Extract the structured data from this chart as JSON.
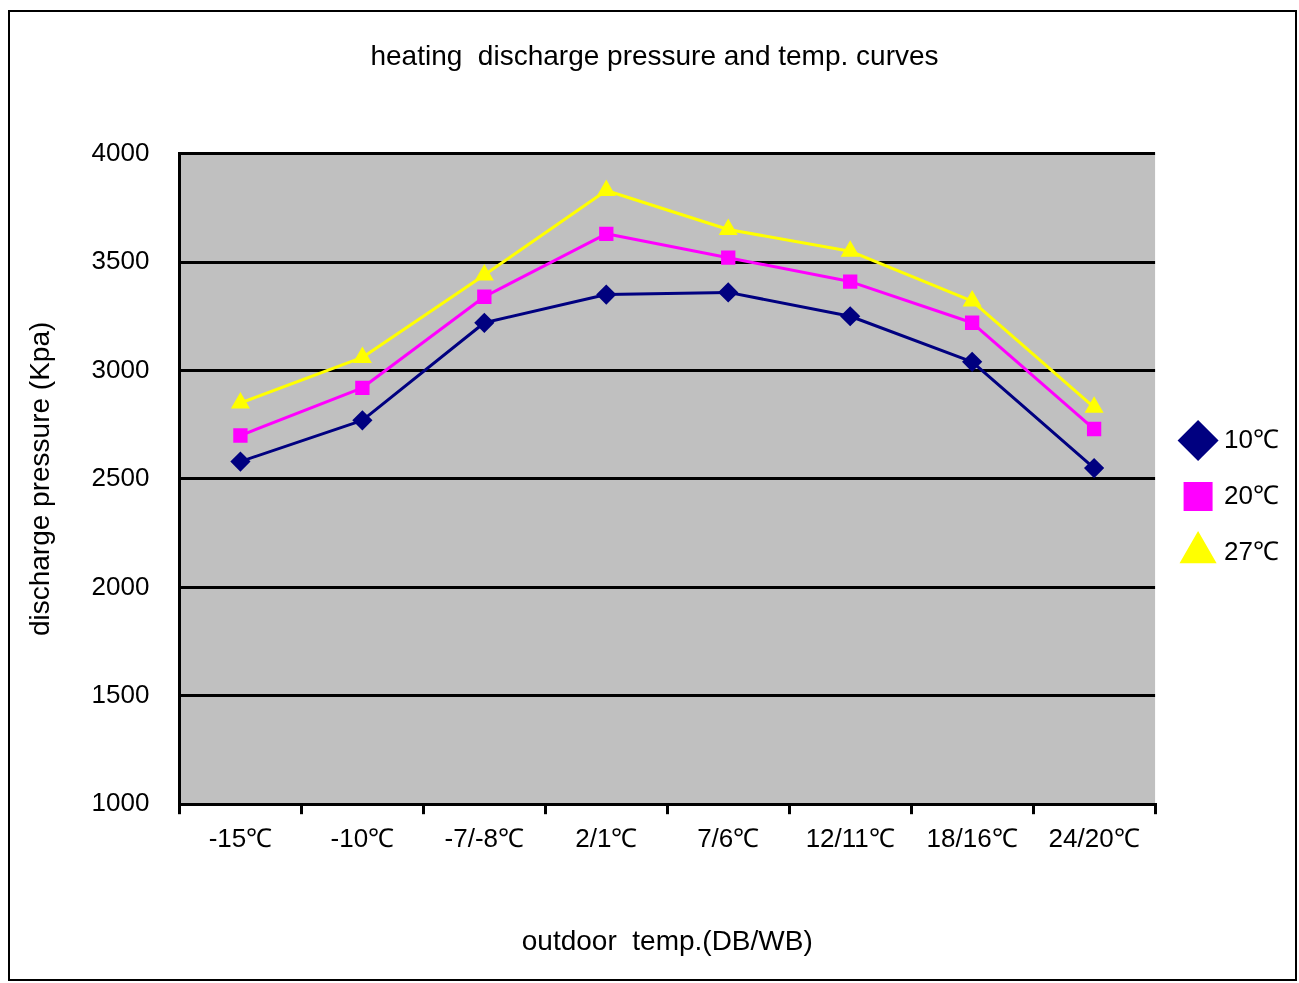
{
  "chart_data": {
    "type": "line",
    "title": "heating  discharge pressure and temp. curves",
    "xlabel": "outdoor  temp.(DB/WB)",
    "ylabel": "discharge pressure (Kpa)",
    "categories": [
      "-15℃",
      "-10℃",
      "-7/-8℃",
      "2/1℃",
      "7/6℃",
      "12/11℃",
      "18/16℃",
      "24/20℃"
    ],
    "series": [
      {
        "name": "10℃",
        "color": "#000080",
        "marker": "diamond",
        "values": [
          2580,
          2770,
          3220,
          3350,
          3360,
          3250,
          3040,
          2550
        ]
      },
      {
        "name": "20℃",
        "color": "#ff00ff",
        "marker": "square",
        "values": [
          2700,
          2920,
          3340,
          3630,
          3520,
          3410,
          3220,
          2730
        ]
      },
      {
        "name": "27℃",
        "color": "#ffff00",
        "marker": "triangle",
        "values": [
          2850,
          3060,
          3440,
          3830,
          3650,
          3550,
          3320,
          2830
        ]
      }
    ],
    "ylim": [
      1000,
      4000
    ],
    "yticks": [
      1000,
      1500,
      2000,
      2500,
      3000,
      3500,
      4000
    ],
    "grid": "y",
    "legend": "right",
    "line_style": "solid"
  }
}
